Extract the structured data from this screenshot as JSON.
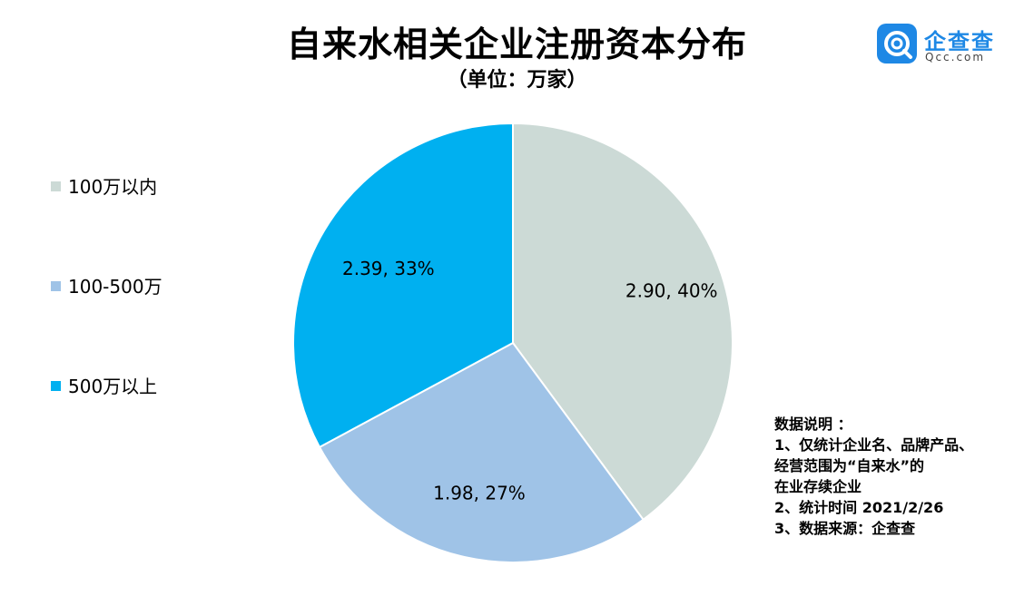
{
  "chart_data": {
    "type": "pie",
    "title": "自来水相关企业注册资本分布",
    "subtitle": "（单位：万家）",
    "legend_position": "left",
    "slices": [
      {
        "name": "100万以内",
        "value": 2.9,
        "percent": "40%",
        "label": "2.90, 40%",
        "color": "#ccdad6"
      },
      {
        "name": "100-500万",
        "value": 1.98,
        "percent": "27%",
        "label": "1.98, 27%",
        "color": "#9fc3e7"
      },
      {
        "name": "500万以上",
        "value": 2.39,
        "percent": "33%",
        "label": "2.39, 33%",
        "color": "#00b0f0"
      }
    ]
  },
  "logo": {
    "name": "企查查",
    "domain": "Qcc.com",
    "color": "#1e88e5",
    "icon": "qcc-logo-icon"
  },
  "note": {
    "lines": [
      "数据说明 ：",
      "1、仅统计企业名、品牌产品、",
      "经营范围为“自来水”的",
      "在业存续企业",
      "2、统计时间 2021/2/26",
      "3、数据来源：企查查"
    ]
  }
}
